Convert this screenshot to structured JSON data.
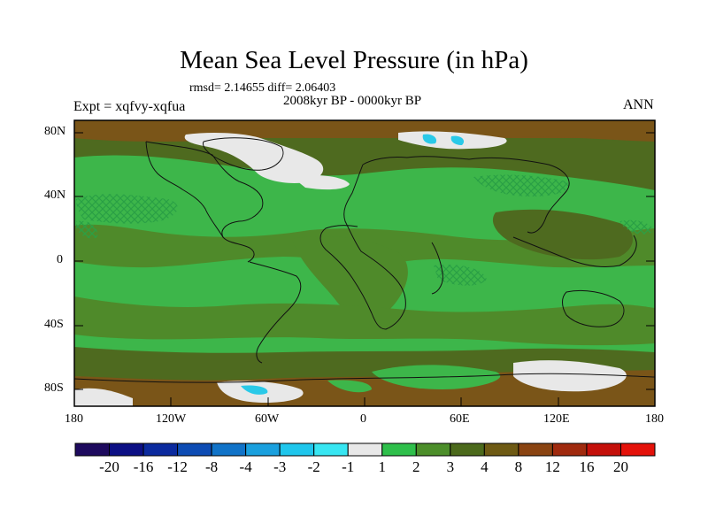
{
  "title": "Mean Sea Level Pressure (in hPa)",
  "stats": "rmsd= 2.14655  diff= 2.06403",
  "period": "2008kyr BP - 0000kyr BP",
  "experiment": "Expt = xqfvy-xqfua",
  "season": "ANN",
  "axes": {
    "lat_labels": [
      "80N",
      "40N",
      "0",
      "40S",
      "80S"
    ],
    "lon_labels": [
      "180",
      "120W",
      "60W",
      "0",
      "60E",
      "120E",
      "180"
    ]
  },
  "colors": {
    "land_green_light": "#3db64a",
    "mid_green": "#4f8a2a",
    "olive": "#4e6a1f",
    "brown": "#7a5518",
    "near_zero": "#e8e8e8",
    "light_cyan": "#2ac9e8"
  },
  "colorbar": {
    "labels": [
      "-20",
      "-16",
      "-12",
      "-8",
      "-4",
      "-3",
      "-2",
      "-1",
      "1",
      "2",
      "3",
      "4",
      "8",
      "12",
      "16",
      "20"
    ],
    "colors": [
      "#1e0a5e",
      "#0c0f84",
      "#0b2a9e",
      "#0d4cb4",
      "#1173c8",
      "#1aa0de",
      "#1fc6ec",
      "#38e6f2",
      "#e8e8e8",
      "#2fbf4b",
      "#4c8e2a",
      "#4c6a1c",
      "#6e5a14",
      "#8a4412",
      "#a02a0e",
      "#c4100a",
      "#e4120a"
    ]
  }
}
